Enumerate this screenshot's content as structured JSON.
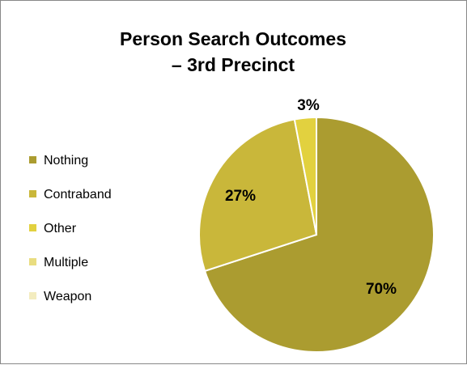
{
  "chart_data": {
    "type": "pie",
    "title_lines": [
      "Person Search Outcomes",
      "– 3rd Precinct"
    ],
    "categories": [
      "Nothing",
      "Contraband",
      "Other",
      "Multiple",
      "Weapon"
    ],
    "values": [
      70,
      27,
      3,
      0,
      0
    ],
    "data_labels": [
      "70%",
      "27%",
      "3%",
      "",
      ""
    ],
    "colors": [
      "#ab9c30",
      "#c9b73a",
      "#e2d13f",
      "#e9dd80",
      "#f3ecbf"
    ],
    "slice_border_color": "#ffffff",
    "legend_position": "left",
    "start_angle": "12 o'clock",
    "direction": "clockwise"
  }
}
